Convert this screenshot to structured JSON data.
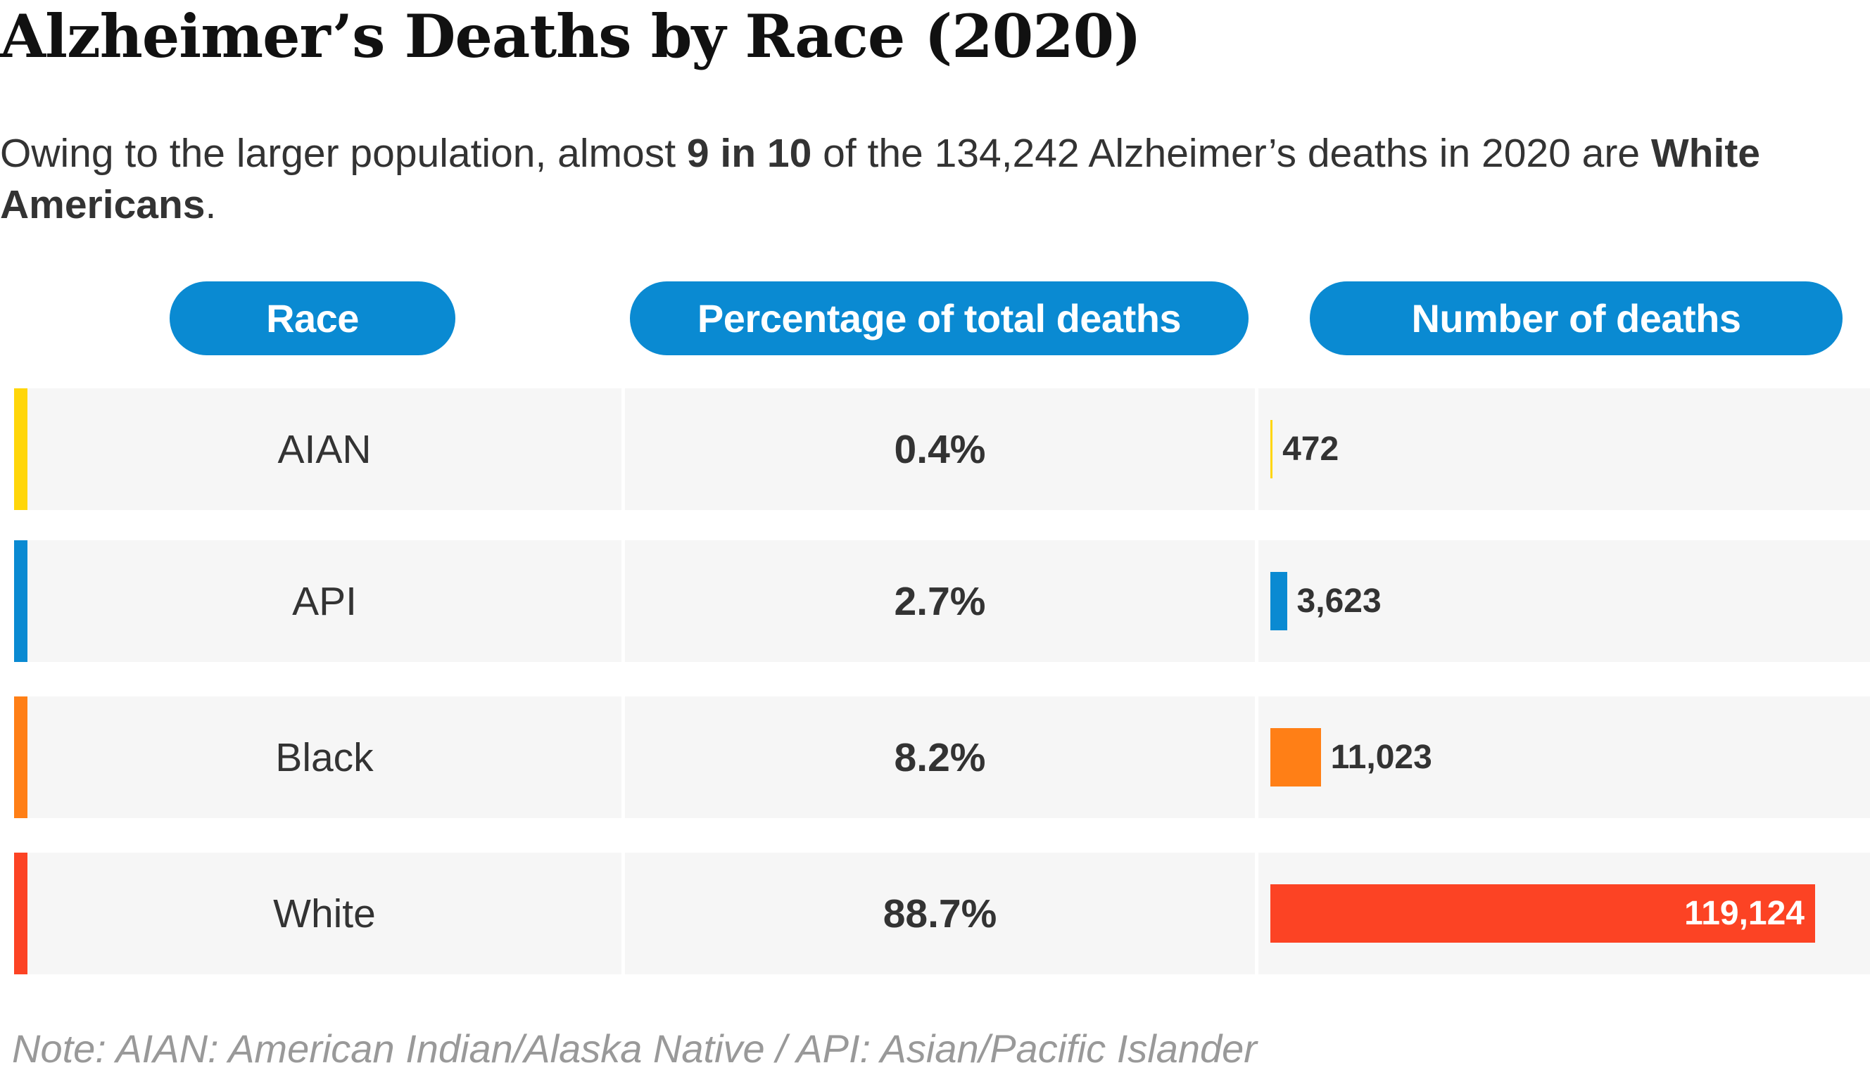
{
  "title": "Alzheimer’s Deaths by Race (2020)",
  "subtitle": {
    "part1": "Owing to the larger population, almost ",
    "bold1": "9 in 10",
    "part2": " of the 134,242 Alzheimer’s deaths in 2020 are ",
    "bold2": "White Americans",
    "part3": "."
  },
  "chart_data": {
    "type": "table",
    "columns": [
      "Race",
      "Percentage of total deaths",
      "Number of deaths"
    ],
    "rows": [
      {
        "race": "AIAN",
        "percent": "0.4%",
        "deaths": 472,
        "deaths_label": "472",
        "color": "#ffd60a"
      },
      {
        "race": "API",
        "percent": "2.7%",
        "deaths": 3623,
        "deaths_label": "3,623",
        "color": "#0a8ad2"
      },
      {
        "race": "Black",
        "percent": "8.2%",
        "deaths": 11023,
        "deaths_label": "11,023",
        "color": "#ff7f16"
      },
      {
        "race": "White",
        "percent": "88.7%",
        "deaths": 119124,
        "deaths_label": "119,124",
        "color": "#fc4324"
      }
    ],
    "bar_max": 119124
  },
  "note": "Note: AIAN: American Indian/Alaska Native  /  API: Asian/Pacific Islander"
}
